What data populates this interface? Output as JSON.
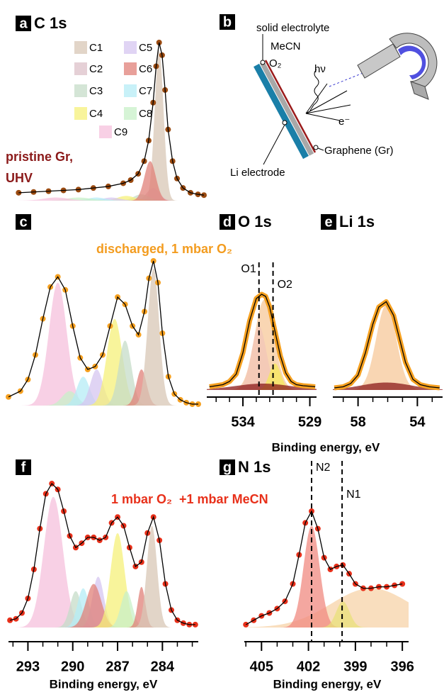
{
  "chart_data": [
    {
      "type": "line",
      "panel_label": "a",
      "title": "C 1s",
      "annotations": [
        "pristine Gr,",
        "UHV"
      ],
      "annotation_color": "#8b1a1a",
      "point_color": "#9a4a10",
      "points": true,
      "legend": true,
      "x": [
        294,
        293,
        292,
        291,
        290,
        289,
        288,
        287,
        286.5,
        286,
        285.6,
        285.3,
        285,
        284.8,
        284.6,
        284.4,
        284.2,
        284,
        283.7,
        283.4,
        283,
        282.5,
        282,
        281.6
      ],
      "values": [
        0.05,
        0.055,
        0.06,
        0.065,
        0.07,
        0.08,
        0.09,
        0.11,
        0.13,
        0.17,
        0.25,
        0.38,
        0.62,
        0.85,
        1.0,
        0.92,
        0.7,
        0.45,
        0.25,
        0.14,
        0.08,
        0.05,
        0.04,
        0.035
      ],
      "components": [
        {
          "name": "C1",
          "color": "#d8c7b5",
          "center": 284.6,
          "height": 0.95,
          "fwhm": 0.7
        },
        {
          "name": "C2",
          "color": "#dcc0c8",
          "center": 285.0,
          "height": 0.08,
          "fwhm": 1.0
        },
        {
          "name": "C3",
          "color": "#c5dcc8",
          "center": 285.8,
          "height": 0.04,
          "fwhm": 1.2
        },
        {
          "name": "C4",
          "color": "#f5f07a",
          "center": 286.8,
          "height": 0.03,
          "fwhm": 1.4
        },
        {
          "name": "C5",
          "color": "#d5c5f0",
          "center": 287.8,
          "height": 0.02,
          "fwhm": 1.4
        },
        {
          "name": "C6",
          "color": "#e08078",
          "center": 285.2,
          "height": 0.25,
          "fwhm": 0.9
        },
        {
          "name": "C7",
          "color": "#b5ecf5",
          "center": 288.8,
          "height": 0.02,
          "fwhm": 1.4
        },
        {
          "name": "C8",
          "color": "#c8f0c8",
          "center": 290.0,
          "height": 0.02,
          "fwhm": 2.0
        },
        {
          "name": "C9",
          "color": "#f5c0dc",
          "center": 291.5,
          "height": 0.02,
          "fwhm": 2.0
        }
      ],
      "xlim": [
        294.3,
        281.6
      ],
      "ylim": [
        0,
        1
      ]
    },
    {
      "type": "line",
      "panel_label": "c",
      "annotations": [
        "discharged, 1 mbar O₂"
      ],
      "annotation_color": "#f39c1f",
      "point_color": "#f5a020",
      "points": true,
      "x": [
        294.3,
        293.5,
        293,
        292.5,
        292,
        291.5,
        291,
        290.5,
        290,
        289.5,
        289,
        288.5,
        288,
        287.5,
        287,
        286.5,
        286,
        285.6,
        285.2,
        284.9,
        284.6,
        284.3,
        284,
        283.6,
        283.2,
        282.8,
        282.4,
        282,
        281.6
      ],
      "values": [
        0.06,
        0.1,
        0.18,
        0.35,
        0.6,
        0.82,
        0.89,
        0.8,
        0.55,
        0.33,
        0.25,
        0.27,
        0.35,
        0.55,
        0.75,
        0.7,
        0.55,
        0.49,
        0.65,
        0.88,
        1.0,
        0.85,
        0.5,
        0.2,
        0.08,
        0.04,
        0.02,
        0.01,
        0.01
      ],
      "components": [
        {
          "color": "#f5c0dc",
          "center": 291.0,
          "height": 0.85,
          "fwhm": 1.4
        },
        {
          "color": "#c8f0c8",
          "center": 290.2,
          "height": 0.1,
          "fwhm": 1.2
        },
        {
          "color": "#b5ecf5",
          "center": 289.3,
          "height": 0.2,
          "fwhm": 1.0
        },
        {
          "color": "#d5c5f0",
          "center": 288.4,
          "height": 0.25,
          "fwhm": 1.0
        },
        {
          "color": "#f5f07a",
          "center": 287.2,
          "height": 0.6,
          "fwhm": 1.2
        },
        {
          "color": "#c5dcc8",
          "center": 286.5,
          "height": 0.45,
          "fwhm": 1.0
        },
        {
          "color": "#e08078",
          "center": 285.4,
          "height": 0.25,
          "fwhm": 0.8
        },
        {
          "color": "#d8c7b5",
          "center": 284.6,
          "height": 0.95,
          "fwhm": 0.9
        }
      ],
      "xlim": [
        294.3,
        281.6
      ],
      "ylim": [
        0,
        1
      ]
    },
    {
      "type": "line",
      "panel_label": "d",
      "title": "O 1s",
      "xlabel": "Binding energy, eV",
      "point_color": "#f5a020",
      "points": false,
      "x": [
        536.5,
        536,
        535.5,
        535,
        534.5,
        534,
        533.5,
        533,
        532.6,
        532.3,
        532,
        531.6,
        531.2,
        530.8,
        530.4,
        530,
        529.5,
        529,
        528.6
      ],
      "values": [
        0.03,
        0.04,
        0.05,
        0.08,
        0.15,
        0.35,
        0.65,
        0.86,
        0.9,
        0.88,
        0.78,
        0.55,
        0.32,
        0.16,
        0.08,
        0.05,
        0.04,
        0.035,
        0.03
      ],
      "components": [
        {
          "color": "#f7c89a",
          "center": 532.4,
          "height": 0.85,
          "fwhm": 1.7
        },
        {
          "color": "#f2c6b8",
          "center": 532.8,
          "height": 0.6,
          "fwhm": 1.3
        },
        {
          "color": "#f5e85a",
          "center": 531.6,
          "height": 0.25,
          "fwhm": 1.0
        },
        {
          "color": "#8b1a1a",
          "center": 532.5,
          "height": 0.06,
          "fwhm": 5
        }
      ],
      "markers": [
        {
          "label": "O1",
          "x": 532.8,
          "side": "left"
        },
        {
          "label": "O2",
          "x": 531.75,
          "side": "right"
        }
      ],
      "xlim": [
        536.7,
        528.5
      ],
      "ylim": [
        0,
        1
      ],
      "xticks": [
        534,
        529
      ],
      "xminorticks": [
        536,
        535,
        533,
        532,
        531,
        530
      ]
    },
    {
      "type": "line",
      "panel_label": "e",
      "title": "Li 1s",
      "point_color": "#f5a020",
      "points": false,
      "x": [
        59.6,
        59,
        58.5,
        58,
        57.5,
        57,
        56.6,
        56.1,
        55.6,
        55.2,
        54.8,
        54.3,
        53.8,
        53.2,
        52.5
      ],
      "values": [
        0.02,
        0.03,
        0.06,
        0.14,
        0.35,
        0.62,
        0.78,
        0.83,
        0.7,
        0.48,
        0.26,
        0.1,
        0.05,
        0.03,
        0.02
      ],
      "components": [
        {
          "color": "#f7c89a",
          "center": 56.1,
          "height": 0.8,
          "fwhm": 1.6
        },
        {
          "color": "#8b1a1a",
          "center": 56.1,
          "height": 0.07,
          "fwhm": 4
        }
      ],
      "xlim": [
        59.7,
        52.3
      ],
      "ylim": [
        0,
        1
      ],
      "xticks": [
        58,
        54
      ],
      "xminorticks": [
        59,
        57,
        56,
        55,
        53
      ]
    },
    {
      "type": "line",
      "panel_label": "f",
      "xlabel": "Binding energy, eV",
      "annotations": [
        "1 mbar O₂  +1 mbar MeCN"
      ],
      "annotation_color": "#e8301a",
      "point_color": "#e8301a",
      "points": true,
      "x": [
        294.2,
        293.8,
        293.4,
        293,
        292.6,
        292.2,
        291.8,
        291.4,
        291,
        290.6,
        290.2,
        289.8,
        289.4,
        289,
        288.6,
        288.2,
        287.8,
        287.4,
        287,
        286.6,
        286.2,
        285.8,
        285.4,
        285,
        284.6,
        284.2,
        283.8,
        283.4,
        283,
        282.6,
        282.2,
        281.8
      ],
      "values": [
        0.05,
        0.06,
        0.1,
        0.2,
        0.4,
        0.68,
        0.92,
        0.99,
        0.95,
        0.8,
        0.63,
        0.55,
        0.58,
        0.62,
        0.62,
        0.6,
        0.62,
        0.72,
        0.76,
        0.7,
        0.55,
        0.42,
        0.45,
        0.65,
        0.76,
        0.6,
        0.3,
        0.12,
        0.05,
        0.03,
        0.02,
        0.02
      ],
      "components": [
        {
          "color": "#f5c0dc",
          "center": 291.3,
          "height": 0.9,
          "fwhm": 1.5
        },
        {
          "color": "#c5dcc8",
          "center": 289.8,
          "height": 0.25,
          "fwhm": 0.9
        },
        {
          "color": "#b5ecf5",
          "center": 289.3,
          "height": 0.27,
          "fwhm": 0.9
        },
        {
          "color": "#d5c5f0",
          "center": 288.3,
          "height": 0.35,
          "fwhm": 0.9
        },
        {
          "color": "#e08078",
          "center": 288.6,
          "height": 0.3,
          "fwhm": 1.2
        },
        {
          "color": "#f5f07a",
          "center": 287.0,
          "height": 0.65,
          "fwhm": 1.1
        },
        {
          "color": "#c8f0c8",
          "center": 286.4,
          "height": 0.25,
          "fwhm": 0.9
        },
        {
          "color": "#e08078",
          "center": 285.4,
          "height": 0.28,
          "fwhm": 0.6
        },
        {
          "color": "#d8c7b5",
          "center": 284.7,
          "height": 0.7,
          "fwhm": 0.8
        }
      ],
      "xlim": [
        294.3,
        281.6
      ],
      "ylim": [
        0,
        1
      ],
      "xticks": [
        293,
        290,
        287,
        284
      ],
      "xminorticks": [
        294,
        292,
        291,
        289,
        288,
        286,
        285,
        283,
        282
      ]
    },
    {
      "type": "line",
      "panel_label": "g",
      "title": "N 1s",
      "xlabel": "Binding energy, eV",
      "point_color": "#e8301a",
      "points": true,
      "x": [
        406,
        405.5,
        405,
        404.5,
        404,
        403.5,
        403,
        402.6,
        402.2,
        401.8,
        401.4,
        401,
        400.6,
        400.2,
        399.8,
        399.4,
        399,
        398.5,
        398,
        397.5,
        397,
        396.5,
        396
      ],
      "values": [
        0.02,
        0.05,
        0.08,
        0.1,
        0.13,
        0.18,
        0.3,
        0.5,
        0.72,
        0.8,
        0.68,
        0.48,
        0.4,
        0.42,
        0.43,
        0.37,
        0.3,
        0.27,
        0.27,
        0.28,
        0.28,
        0.29,
        0.3
      ],
      "components": [
        {
          "color": "#f7d3a8",
          "center": 398.0,
          "height": 0.27,
          "fwhm": 6
        },
        {
          "color": "#f08a80",
          "center": 401.8,
          "height": 0.7,
          "fwhm": 1.2
        },
        {
          "color": "#e8e07a",
          "center": 399.8,
          "height": 0.18,
          "fwhm": 1.0
        }
      ],
      "markers": [
        {
          "label": "N2",
          "x": 401.8,
          "side": "right"
        },
        {
          "label": "N1",
          "x": 399.85,
          "side": "right"
        }
      ],
      "xlim": [
        406.1,
        395.6
      ],
      "ylim": [
        0,
        1
      ],
      "xticks": [
        405,
        402,
        399,
        396
      ],
      "xminorticks": [
        406,
        404,
        403,
        401,
        400,
        398,
        397
      ]
    }
  ],
  "diagram_b": {
    "panel_label": "b",
    "labels": [
      "solid electrolyte",
      "MeCN",
      "O₂",
      "hν",
      "e⁻",
      "Graphene (Gr)",
      "Li electrode"
    ]
  }
}
